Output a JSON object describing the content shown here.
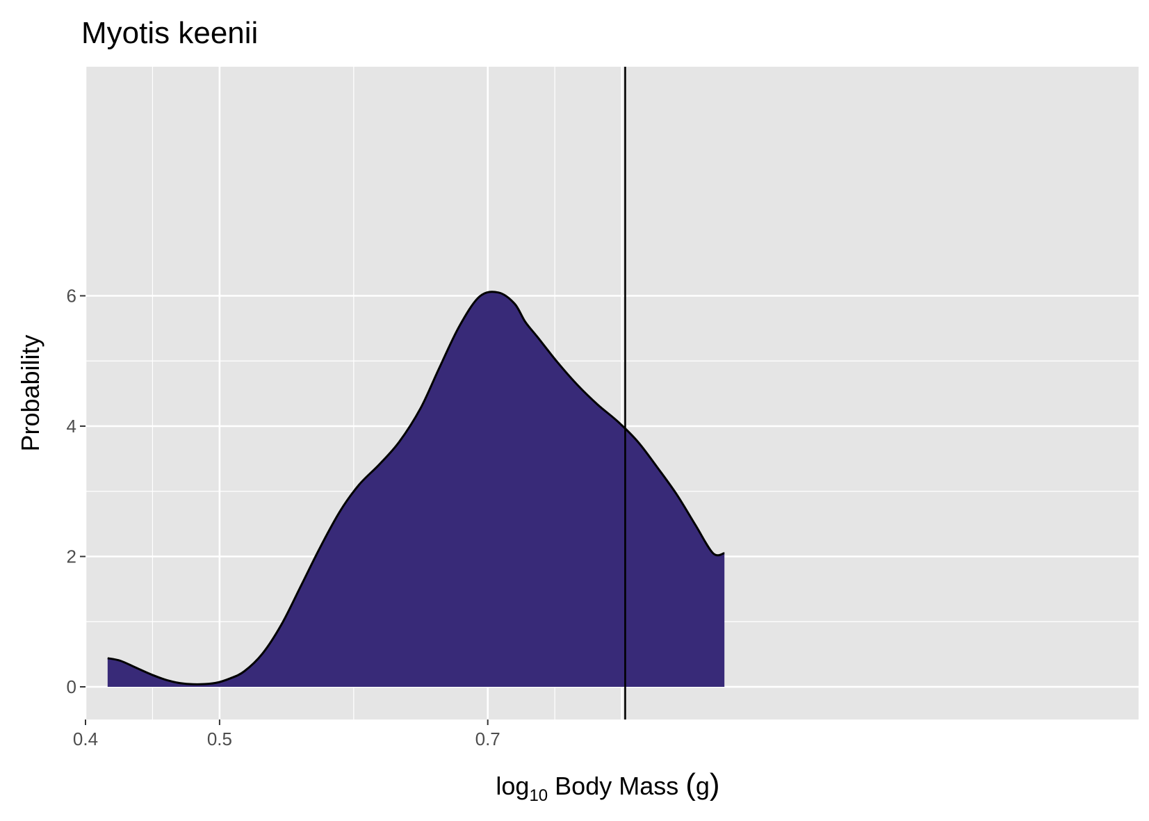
{
  "chart_data": {
    "type": "area",
    "title": "Myotis keenii",
    "xlabel": {
      "prefix": "log",
      "subscript": "10",
      "rest": " Body Mass ",
      "unit": "g"
    },
    "ylabel": "Probability",
    "xlim": [
      0.4,
      0.8
    ],
    "ylim": [
      -0.35,
      6.4
    ],
    "x_ticks": [
      {
        "value": 0.4,
        "label": "0.4"
      },
      {
        "value": 0.5,
        "label": "0.5"
      },
      {
        "value": 0.7,
        "label": "0.7"
      }
    ],
    "x_minor_gridlines": [
      0.45,
      0.6,
      0.75
    ],
    "x_extra_major_gridlines": [
      0.8
    ],
    "y_ticks": [
      {
        "value": 0,
        "label": "0"
      },
      {
        "value": 2,
        "label": "2"
      },
      {
        "value": 4,
        "label": "4"
      },
      {
        "value": 6,
        "label": "6"
      }
    ],
    "y_minor_gridlines": [
      1,
      3,
      5
    ],
    "reference_line_x": 0.8025,
    "fill_color": "#382A78",
    "line_color": "#000000",
    "panel_background": "#E5E5E5",
    "grid": true,
    "series": [
      {
        "x": [
          0.4165,
          0.426,
          0.437,
          0.449,
          0.461,
          0.473,
          0.4855,
          0.497,
          0.508,
          0.5185,
          0.532,
          0.546,
          0.56,
          0.575,
          0.59,
          0.604,
          0.619,
          0.634,
          0.65,
          0.664,
          0.679,
          0.694,
          0.708,
          0.72,
          0.728,
          0.737,
          0.752,
          0.767,
          0.782,
          0.797,
          0.812,
          0.826,
          0.841,
          0.855,
          0.868,
          0.8765
        ],
        "y": [
          0.44,
          0.4,
          0.3,
          0.19,
          0.1,
          0.05,
          0.04,
          0.06,
          0.13,
          0.24,
          0.51,
          0.95,
          1.52,
          2.14,
          2.7,
          3.1,
          3.41,
          3.76,
          4.28,
          4.9,
          5.54,
          5.99,
          6.05,
          5.88,
          5.6,
          5.37,
          4.98,
          4.63,
          4.33,
          4.07,
          3.76,
          3.38,
          2.95,
          2.48,
          2.05,
          2.05
        ]
      }
    ]
  }
}
